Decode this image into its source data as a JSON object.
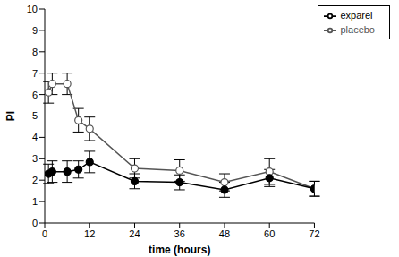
{
  "chart_data": {
    "type": "line",
    "x_label": "time (hours)",
    "y_label": "PI",
    "x": [
      1,
      2,
      6,
      9,
      12,
      24,
      36,
      48,
      60,
      72
    ],
    "series": [
      {
        "name": "placebo",
        "color": "#555555",
        "marker": "open_circle",
        "values": [
          6.1,
          6.5,
          6.5,
          4.8,
          4.4,
          2.55,
          2.45,
          1.9,
          2.4,
          1.6
        ],
        "errors": [
          0.5,
          0.5,
          0.5,
          0.55,
          0.55,
          0.45,
          0.5,
          0.4,
          0.6,
          0.35
        ]
      },
      {
        "name": "exparel",
        "color": "#000000",
        "marker": "filled_circle",
        "values": [
          2.3,
          2.4,
          2.4,
          2.5,
          2.85,
          1.95,
          1.9,
          1.55,
          2.1,
          1.6
        ],
        "errors": [
          0.45,
          0.5,
          0.5,
          0.4,
          0.5,
          0.35,
          0.35,
          0.35,
          0.4,
          0.35
        ]
      }
    ],
    "xlim": [
      0,
      72
    ],
    "xticks": [
      0,
      12,
      24,
      36,
      48,
      60,
      72
    ],
    "ylim": [
      0,
      10
    ],
    "yticks": [
      0,
      1,
      2,
      3,
      4,
      5,
      6,
      7,
      8,
      9,
      10
    ],
    "grid": false,
    "legend": "upper right"
  }
}
